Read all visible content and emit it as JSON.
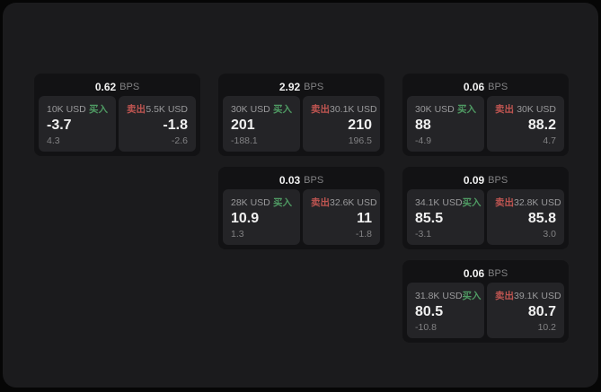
{
  "colors": {
    "page_bg": "#060606",
    "window_bg": "#1b1b1d",
    "card_bg": "#121214",
    "panel_bg": "#242427",
    "text_primary": "#f0f0f0",
    "text_muted": "#9a9a9c",
    "text_dim": "#828284",
    "buy_green": "#4f9a63",
    "sell_red": "#bf5551"
  },
  "labels": {
    "bps_unit": "BPS",
    "buy": "买入",
    "sell": "卖出"
  },
  "cards": [
    {
      "bps": "0.62",
      "col": 1,
      "row": 1,
      "buy": {
        "amount": "10K USD",
        "value": "-3.7",
        "sub": "4.3"
      },
      "sell": {
        "amount": "5.5K USD",
        "value": "-1.8",
        "sub": "-2.6"
      }
    },
    {
      "bps": "2.92",
      "col": 2,
      "row": 1,
      "buy": {
        "amount": "30K USD",
        "value": "201",
        "sub": "-188.1"
      },
      "sell": {
        "amount": "30.1K USD",
        "value": "210",
        "sub": "196.5"
      }
    },
    {
      "bps": "0.06",
      "col": 3,
      "row": 1,
      "buy": {
        "amount": "30K USD",
        "value": "88",
        "sub": "-4.9"
      },
      "sell": {
        "amount": "30K USD",
        "value": "88.2",
        "sub": "4.7"
      }
    },
    {
      "bps": "0.03",
      "col": 2,
      "row": 2,
      "buy": {
        "amount": "28K USD",
        "value": "10.9",
        "sub": "1.3"
      },
      "sell": {
        "amount": "32.6K USD",
        "value": "11",
        "sub": "-1.8"
      }
    },
    {
      "bps": "0.09",
      "col": 3,
      "row": 2,
      "buy": {
        "amount": "34.1K USD",
        "value": "85.5",
        "sub": "-3.1"
      },
      "sell": {
        "amount": "32.8K USD",
        "value": "85.8",
        "sub": "3.0"
      }
    },
    {
      "bps": "0.06",
      "col": 3,
      "row": 3,
      "buy": {
        "amount": "31.8K USD",
        "value": "80.5",
        "sub": "-10.8"
      },
      "sell": {
        "amount": "39.1K USD",
        "value": "80.7",
        "sub": "10.2"
      }
    }
  ]
}
